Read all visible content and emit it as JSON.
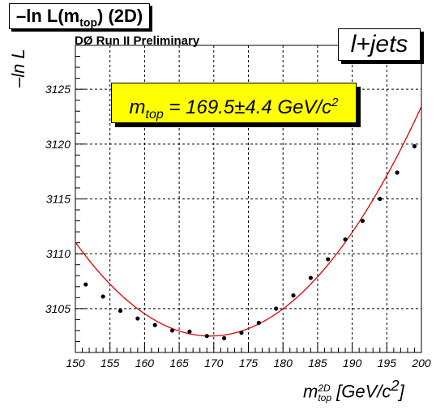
{
  "title_box": {
    "main": "–ln L(m",
    "sub": "top",
    "tail": ") (2D)"
  },
  "experiment": "DØ Run II Preliminary",
  "channel": "l+jets",
  "result": {
    "m": "m",
    "sub": "top",
    "eq": " = 169.5±4.4 GeV/c",
    "sup": "2"
  },
  "axes": {
    "ylabel": "–ln L",
    "xlabel": {
      "m": "m",
      "sup": "2D",
      "sub": "top",
      "unit": " [GeV/c",
      "unit_sup": "2",
      "close": "]"
    }
  },
  "colors": {
    "fit": "#e00000",
    "points": "#000000",
    "result_box": "#ffff00"
  },
  "chart_data": {
    "type": "scatter",
    "xlim": [
      150,
      200
    ],
    "ylim": [
      3101,
      3129
    ],
    "xticks": [
      150,
      155,
      160,
      165,
      170,
      175,
      180,
      185,
      190,
      195,
      200
    ],
    "yticks": [
      3105,
      3110,
      3115,
      3120,
      3125
    ],
    "grid": true,
    "points": [
      {
        "x": 151.5,
        "y": 3107.2
      },
      {
        "x": 154.0,
        "y": 3106.1
      },
      {
        "x": 156.5,
        "y": 3104.8
      },
      {
        "x": 159.0,
        "y": 3104.1
      },
      {
        "x": 161.5,
        "y": 3103.5
      },
      {
        "x": 164.0,
        "y": 3103.0
      },
      {
        "x": 166.5,
        "y": 3102.9
      },
      {
        "x": 169.0,
        "y": 3102.5
      },
      {
        "x": 171.5,
        "y": 3102.3
      },
      {
        "x": 174.0,
        "y": 3102.8
      },
      {
        "x": 176.5,
        "y": 3103.7
      },
      {
        "x": 179.0,
        "y": 3105.0
      },
      {
        "x": 181.5,
        "y": 3106.2
      },
      {
        "x": 184.0,
        "y": 3107.8
      },
      {
        "x": 186.5,
        "y": 3109.5
      },
      {
        "x": 189.0,
        "y": 3111.3
      },
      {
        "x": 191.5,
        "y": 3113.0
      },
      {
        "x": 194.0,
        "y": 3115.0
      },
      {
        "x": 196.5,
        "y": 3117.4
      },
      {
        "x": 199.0,
        "y": 3119.8
      }
    ],
    "fit": {
      "type": "parabola",
      "x_min": 169.5,
      "y_min": 3102.5,
      "curvature": 0.0225
    }
  }
}
